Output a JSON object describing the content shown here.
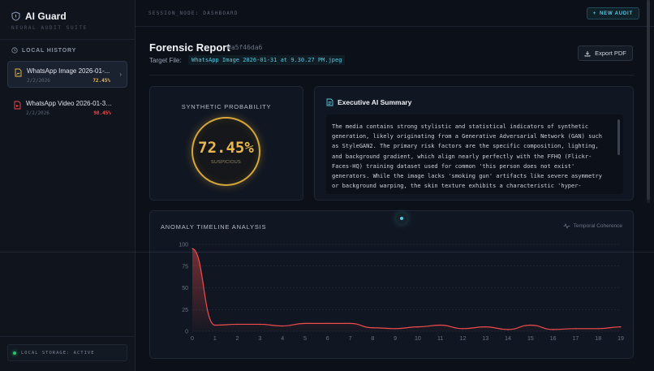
{
  "app": {
    "title": "AI Guard",
    "subtitle": "NEURAL AUDIT SUITE",
    "accent": "#58c8e3"
  },
  "sidebar": {
    "history_heading": "LOCAL HISTORY",
    "items": [
      {
        "name": "WhatsApp Image 2026-01-...",
        "date": "2/2/2026",
        "score": "72.45%",
        "score_color": "#e9b84a",
        "icon": "image-file-icon",
        "icon_color": "#e9b84a",
        "active": true
      },
      {
        "name": "WhatsApp Video 2026-01-31 at ...",
        "date": "2/2/2026",
        "score": "98.45%",
        "score_color": "#ef4b4b",
        "icon": "video-file-icon",
        "icon_color": "#ef4b4b",
        "active": false
      }
    ],
    "storage_status": "LOCAL STORAGE: ACTIVE"
  },
  "topbar": {
    "session": "SESSION_NODE: DASHBOARD",
    "new_audit": "NEW AUDIT"
  },
  "report": {
    "title": "Forensic Report",
    "hash": "#a5f46da6",
    "target_label": "Target File:",
    "target_file": "WhatsApp Image 2026-01-31 at 9.30.27 PM.jpeg",
    "export_label": "Export PDF"
  },
  "probability": {
    "label": "SYNTHETIC PROBABILITY",
    "value": "72.45%",
    "status": "SUSPICIOUS",
    "color": "#d6a63b"
  },
  "summary": {
    "heading": "Executive AI Summary",
    "text": "The media contains strong stylistic and statistical indicators of synthetic generation, likely originating from a Generative Adversarial Network (GAN) such as StyleGAN2. The primary risk factors are the specific composition, lighting, and background gradient, which align nearly perfectly with the FFHQ (Flickr-Faces-HQ) training dataset used for common 'this person does not exist' generators. While the image lacks 'smoking gun' artifacts like severe asymmetry or background warping, the skin texture exhibits a characteristic 'hyper-"
  },
  "timeline": {
    "title": "ANOMALY TIMELINE ANALYSIS",
    "right_label": "Temporal Coherence"
  },
  "chart_data": {
    "type": "area",
    "x": [
      0,
      1,
      2,
      3,
      4,
      5,
      6,
      7,
      8,
      9,
      10,
      11,
      12,
      13,
      14,
      15,
      16,
      17,
      18,
      19
    ],
    "series": [
      {
        "values": [
          95,
          7,
          8,
          8,
          6,
          9,
          9,
          9,
          4,
          3,
          5,
          7,
          3,
          5,
          2,
          7,
          2,
          3,
          3,
          5
        ],
        "color": "#ef4b4b"
      }
    ],
    "ylim": [
      0,
      100
    ],
    "yticks": [
      0,
      25,
      50,
      75,
      100
    ],
    "xlim": [
      0,
      19
    ],
    "grid": true
  }
}
